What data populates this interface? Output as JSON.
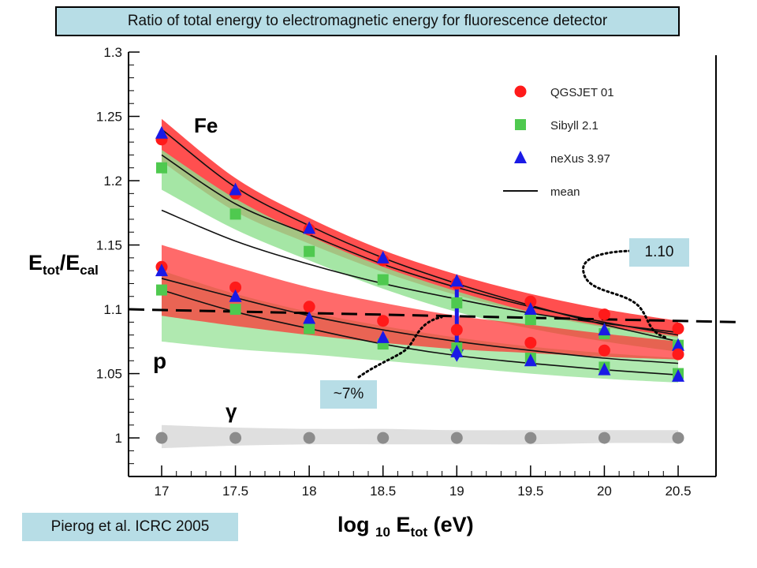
{
  "title": "Ratio of total energy to electromagnetic energy for fluorescence detector",
  "citation": "Pierog et al.  ICRC 2005",
  "annotations": {
    "value_label": "1.10",
    "percent_label": "~7%",
    "group_fe": "Fe",
    "group_p": "p",
    "group_gamma": "γ"
  },
  "axes": {
    "y_label": {
      "main": "E",
      "sub1": "tot",
      "slash": "/E",
      "sub2": "cal"
    },
    "x_label": {
      "main": "log ",
      "sub0": "10",
      "mid": " E",
      "sub1": "tot",
      "unit": " (eV)"
    }
  },
  "colors": {
    "qgsjet": "#ff1a1a",
    "sibyll": "#4fc94f",
    "nexus": "#1a1ae6",
    "gamma": "#8c8c8c",
    "band_red": "#ff3030",
    "band_green": "#8fe08f",
    "band_gray": "#dcdcdc",
    "annotation_box": "#b7dde6"
  },
  "chart_data": {
    "type": "scatter",
    "xlim": [
      16.95,
      20.7
    ],
    "ylim": [
      0.97,
      1.3
    ],
    "x_ticks": [
      "17",
      "17.5",
      "18",
      "18.5",
      "19",
      "19.5",
      "20",
      "20.5"
    ],
    "y_ticks": [
      "1",
      "1.05",
      "1.1",
      "1.15",
      "1.2",
      "1.25",
      "1.3"
    ],
    "legend_position": "top-right",
    "legend": [
      {
        "name": "QGSJET 01",
        "marker": "circle"
      },
      {
        "name": "Sibyll 2.1",
        "marker": "square"
      },
      {
        "name": "neXus 3.97",
        "marker": "triangle"
      },
      {
        "name": "mean",
        "marker": "line"
      }
    ],
    "x": [
      17,
      17.5,
      18,
      18.5,
      19,
      19.5,
      20,
      20.5
    ],
    "series": [
      {
        "name": "QGSJET 01",
        "group": "Fe",
        "marker": "circle",
        "values": [
          1.232,
          1.19,
          1.162,
          1.138,
          1.12,
          1.106,
          1.096,
          1.085
        ]
      },
      {
        "name": "Sibyll 2.1",
        "group": "Fe",
        "marker": "square",
        "values": [
          1.21,
          1.174,
          1.145,
          1.123,
          1.105,
          1.092,
          1.081,
          1.072
        ]
      },
      {
        "name": "neXus 3.97",
        "group": "Fe",
        "marker": "triangle",
        "values": [
          1.237,
          1.193,
          1.163,
          1.14,
          1.122,
          1.1,
          1.084,
          1.072
        ]
      },
      {
        "name": "QGSJET 01",
        "group": "p",
        "marker": "circle",
        "values": [
          1.133,
          1.117,
          1.102,
          1.091,
          1.084,
          1.074,
          1.068,
          1.065
        ]
      },
      {
        "name": "Sibyll 2.1",
        "group": "p",
        "marker": "square",
        "values": [
          1.115,
          1.1,
          1.085,
          1.073,
          1.07,
          1.062,
          1.055,
          1.05
        ]
      },
      {
        "name": "neXus 3.97",
        "group": "p",
        "marker": "triangle",
        "values": [
          1.13,
          1.11,
          1.093,
          1.078,
          1.067,
          1.06,
          1.053,
          1.048
        ]
      },
      {
        "name": "γ",
        "group": "gamma",
        "marker": "circle",
        "values": [
          1.0,
          1.0,
          1.0,
          1.0,
          1.0,
          1.0,
          1.0,
          1.0
        ]
      }
    ],
    "mean_lines": [
      {
        "group": "Fe",
        "values": [
          1.22,
          1.182,
          1.158,
          1.135,
          1.117,
          1.102,
          1.09,
          1.08
        ]
      },
      {
        "group": "Fe-upper",
        "values": [
          1.24,
          1.195,
          1.165,
          1.14,
          1.12,
          1.103,
          1.088,
          1.075
        ]
      },
      {
        "group": "mixed",
        "values": [
          1.177,
          1.153,
          1.135,
          1.12,
          1.108,
          1.097,
          1.089,
          1.082
        ]
      },
      {
        "group": "p",
        "values": [
          1.124,
          1.109,
          1.095,
          1.084,
          1.075,
          1.068,
          1.062,
          1.058
        ]
      },
      {
        "group": "p-lower",
        "values": [
          1.115,
          1.098,
          1.085,
          1.073,
          1.064,
          1.058,
          1.053,
          1.049
        ]
      }
    ],
    "bands": [
      {
        "group": "Fe-red",
        "lower": [
          1.215,
          1.176,
          1.151,
          1.129,
          1.111,
          1.097,
          1.086,
          1.078
        ],
        "upper": [
          1.248,
          1.202,
          1.171,
          1.146,
          1.127,
          1.112,
          1.1,
          1.091
        ]
      },
      {
        "group": "Fe-green",
        "lower": [
          1.193,
          1.162,
          1.138,
          1.116,
          1.098,
          1.085,
          1.075,
          1.067
        ],
        "upper": [
          1.224,
          1.186,
          1.157,
          1.133,
          1.114,
          1.098,
          1.087,
          1.079
        ]
      },
      {
        "group": "p-green",
        "lower": [
          1.075,
          1.069,
          1.065,
          1.06,
          1.055,
          1.05,
          1.046,
          1.043
        ],
        "upper": [
          1.13,
          1.112,
          1.098,
          1.087,
          1.078,
          1.071,
          1.066,
          1.062
        ]
      },
      {
        "group": "p-red",
        "lower": [
          1.095,
          1.087,
          1.08,
          1.074,
          1.069,
          1.066,
          1.063,
          1.061
        ],
        "upper": [
          1.15,
          1.133,
          1.117,
          1.105,
          1.095,
          1.088,
          1.081,
          1.075
        ]
      },
      {
        "group": "gamma",
        "lower": [
          0.992,
          0.994,
          0.995,
          0.995,
          0.995,
          0.995,
          0.996,
          0.996
        ],
        "upper": [
          1.01,
          1.008,
          1.007,
          1.007,
          1.006,
          1.006,
          1.006,
          1.006
        ]
      }
    ],
    "reference_line": {
      "y_start": 1.1,
      "y_end": 1.09,
      "style": "dashed"
    },
    "highlight_arrow": {
      "x": 19,
      "y_from": 1.064,
      "y_to": 1.122
    }
  }
}
